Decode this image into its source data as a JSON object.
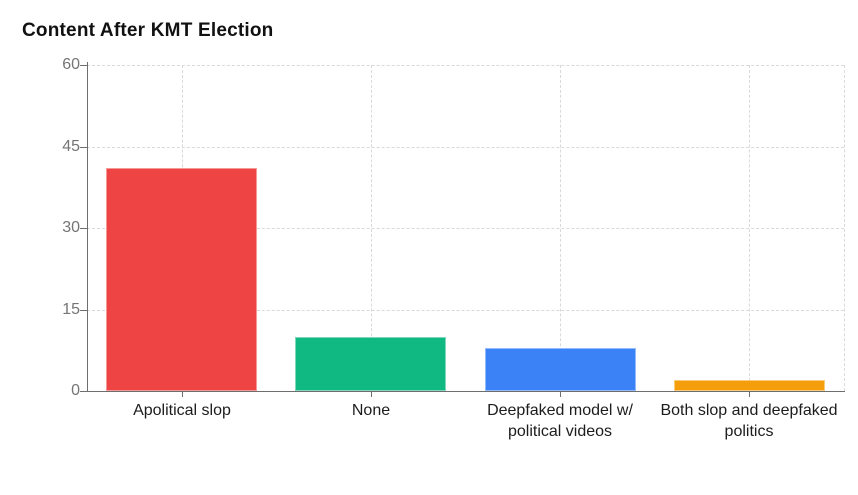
{
  "title": "Content After KMT Election",
  "chart_data": {
    "type": "bar",
    "title": "Content After KMT Election",
    "categories": [
      "Apolitical slop",
      "None",
      "Deepfaked model w/ political videos",
      "Both slop and deepfaked politics"
    ],
    "values": [
      41,
      10,
      8,
      2
    ],
    "bar_colors": [
      "#EF4444",
      "#10B981",
      "#3B82F6",
      "#F59E0B"
    ],
    "xlabel": "",
    "ylabel": "",
    "ylim": [
      0,
      60
    ],
    "yticks": [
      0,
      15,
      30,
      45,
      60
    ],
    "grid": "dashed horizontal at yticks plus vertical at category centers and right edge",
    "legend": "none"
  },
  "colors": {
    "background": "#ffffff",
    "title_text": "#111111",
    "axis": "#6e6e6e",
    "grid": "#d9d9d9",
    "ytick_label": "#757575",
    "xtick_label": "#1c1c1c"
  }
}
